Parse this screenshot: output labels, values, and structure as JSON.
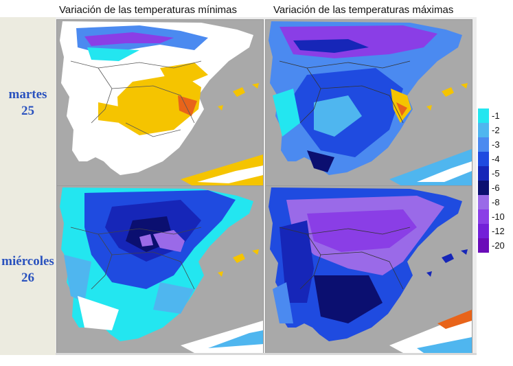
{
  "columns": {
    "min_title": "Variación de las temperaturas mínimas",
    "max_title": "Variación de las temperaturas máximas"
  },
  "rows": [
    {
      "day": "martes",
      "date": "25"
    },
    {
      "day": "miércoles",
      "date": "26"
    }
  ],
  "legend": {
    "items": [
      {
        "label": "-1",
        "color": "#23e6f0"
      },
      {
        "label": "-2",
        "color": "#4fb6ef"
      },
      {
        "label": "-3",
        "color": "#4b8af0"
      },
      {
        "label": "-4",
        "color": "#1f4be0"
      },
      {
        "label": "-5",
        "color": "#1626b8"
      },
      {
        "label": "-6",
        "color": "#0b0f70"
      },
      {
        "label": "-8",
        "color": "#9a6ae8"
      },
      {
        "label": "-10",
        "color": "#8a3ee6"
      },
      {
        "label": "-12",
        "color": "#7320d8"
      },
      {
        "label": "-20",
        "color": "#6a0cb8"
      }
    ]
  },
  "colors": {
    "sea": "#a9a9a9",
    "land": "#ffffff",
    "warm": "#f5c400",
    "hot": "#e8641a"
  }
}
